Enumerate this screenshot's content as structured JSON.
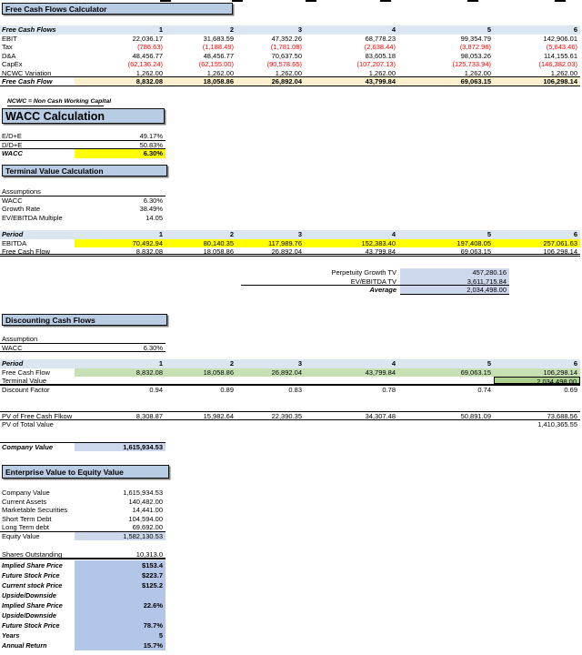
{
  "colors": {
    "header_box_fill": "#b8cce4",
    "period_band_fill": "#dce6f1",
    "fcf_total_fill": "#fbf0ce",
    "yellow_highlight": "#ffff00",
    "green_highlight": "#c6e0b4",
    "terminal_cell_fill": "#a9d08e",
    "value_cell_fill": "#cdd8ec",
    "bottom_block_fill": "#b4c6e7",
    "negative_number": "#ff0000"
  },
  "fcf": {
    "title": "Free Cash Flows Calculator",
    "note": "NCWC = Non Cash Working Capital",
    "header": {
      "label": "Free Cash Flows",
      "values": [
        "1",
        "2",
        "3",
        "4",
        "5",
        "6"
      ]
    },
    "rows": [
      {
        "label": "EBIT",
        "values": [
          "22,036.17",
          "31,683.59",
          "47,352.26",
          "68,778.23",
          "99,354.79",
          "142,906.01"
        ]
      },
      {
        "label": "Tax",
        "values": [
          "(786.63)",
          "(1,188.49)",
          "(1,781.08)",
          "(2,638.44)",
          "(3,872.96)",
          "(5,643.46)"
        ],
        "color": "red"
      },
      {
        "label": "D&A",
        "values": [
          "48,456.77",
          "48,456.77",
          "70,637.50",
          "83,605.18",
          "98,053.26",
          "114,155.61"
        ]
      },
      {
        "label": "CapEx",
        "values": [
          "(62,136.24)",
          "(62,155.00)",
          "(90,578.65)",
          "(107,207.13)",
          "(125,733.94)",
          "(146,382.03)"
        ],
        "color": "red"
      },
      {
        "label": "NCWC Variation",
        "values": [
          "1,262.00",
          "1,262.00",
          "1,262.00",
          "1,262.00",
          "1,262.00",
          "1,262.00"
        ]
      }
    ],
    "total": {
      "label": "Free Cash Flow",
      "values": [
        "8,832.08",
        "18,058.86",
        "26,892.04",
        "43,799.84",
        "69,063.15",
        "106,298.14"
      ]
    }
  },
  "wacc": {
    "title": "WACC Calculation",
    "rows": [
      {
        "label": "E/D+E",
        "value": "49.17%"
      },
      {
        "label": "D/D+E",
        "value": "50.83%"
      }
    ],
    "result": {
      "label": "WACC",
      "value": "6.30%"
    }
  },
  "tv": {
    "title": "Terminal Value Calculation",
    "assumptions_label": "Assumptions",
    "assumptions": [
      {
        "label": "WACC",
        "value": "6.30%"
      },
      {
        "label": "Growth Rate",
        "value": "38.49%"
      },
      {
        "label": "EV/EBITDA Multiple",
        "value": "14.05"
      }
    ],
    "header": {
      "label": "Period",
      "values": [
        "1",
        "2",
        "3",
        "4",
        "5",
        "6"
      ]
    },
    "ebitda": {
      "label": "EBITDA",
      "values": [
        "70,492.94",
        "80,140.35",
        "117,989.76",
        "152,383.40",
        "197,408.05",
        "257,061.63"
      ]
    },
    "fcf": {
      "label": "Free Cash Flow",
      "values": [
        "8,832.08",
        "18,058.86",
        "26,892.04",
        "43,799.84",
        "69,063.15",
        "106,298.14"
      ]
    },
    "results": [
      {
        "label": "Perpetuity Growth TV",
        "value": "457,280.16"
      },
      {
        "label": "EV/EBITDA TV",
        "value": "3,611,715.84"
      },
      {
        "label": "Average",
        "value": "2,034,498.00"
      }
    ]
  },
  "disc": {
    "title": "Discounting Cash Flows",
    "assumption_label": "Assumption",
    "wacc": {
      "label": "WACC",
      "value": "6.30%"
    },
    "header": {
      "label": "Period",
      "values": [
        "1",
        "2",
        "3",
        "4",
        "5",
        "6"
      ]
    },
    "fcf": {
      "label": "Free Cash Flow",
      "values": [
        "8,832.08",
        "18,058.86",
        "26,892.04",
        "43,799.84",
        "69,063.15",
        "106,298.14"
      ]
    },
    "terminal": {
      "label": "Terminal Value",
      "values": [
        "",
        "",
        "",
        "",
        "",
        "2,034,498.00"
      ]
    },
    "discount": {
      "label": "Discount Factor",
      "values": [
        "0.94",
        "0.89",
        "0.83",
        "0.78",
        "0.74",
        "0.69"
      ]
    },
    "pv_fcf": {
      "label": "PV of Free Cash Flkow",
      "values": [
        "8,308.87",
        "15,982.64",
        "22,390.35",
        "34,307.48",
        "50,891.09",
        "73,688.56"
      ]
    },
    "pv_total": {
      "label": "PV of Total Value",
      "values": [
        "",
        "",
        "",
        "",
        "",
        "1,410,365.55"
      ]
    },
    "company_value": {
      "label": "Company Value",
      "value": "1,615,934.53"
    }
  },
  "equity": {
    "title": "Enterprise Value to Equity Value",
    "rows": [
      {
        "label": "Company Value",
        "value": "1,615,934.53"
      },
      {
        "label": "Current Assets",
        "value": "140,482.00"
      },
      {
        "label": "Marketable Securities",
        "value": "14,441.00"
      },
      {
        "label": "Short Term Debt",
        "value": "104,594.00"
      },
      {
        "label": "Long Term debt",
        "value": "69,692.00"
      }
    ],
    "equity_value": {
      "label": "Equity Value",
      "value": "1,582,130.53"
    },
    "shares": {
      "label": "Shares Outstanding",
      "value": "10,313.0"
    },
    "block": [
      {
        "label": "Implied Share Price",
        "value": "$153.4"
      },
      {
        "label": "Future Stock Price",
        "value": "$223.7"
      },
      {
        "label": "Current stock Price",
        "value": "$125.2"
      },
      {
        "label": "Upside/Downside",
        "value": ""
      },
      {
        "label": "Implied Share Price",
        "value": "22.6%"
      },
      {
        "label": "Upside/Downside",
        "value": ""
      },
      {
        "label": "Future Stock Price",
        "value": "78.7%"
      },
      {
        "label": "Years",
        "value": "5"
      },
      {
        "label": "Annual Return",
        "value": "15.7%"
      }
    ]
  }
}
